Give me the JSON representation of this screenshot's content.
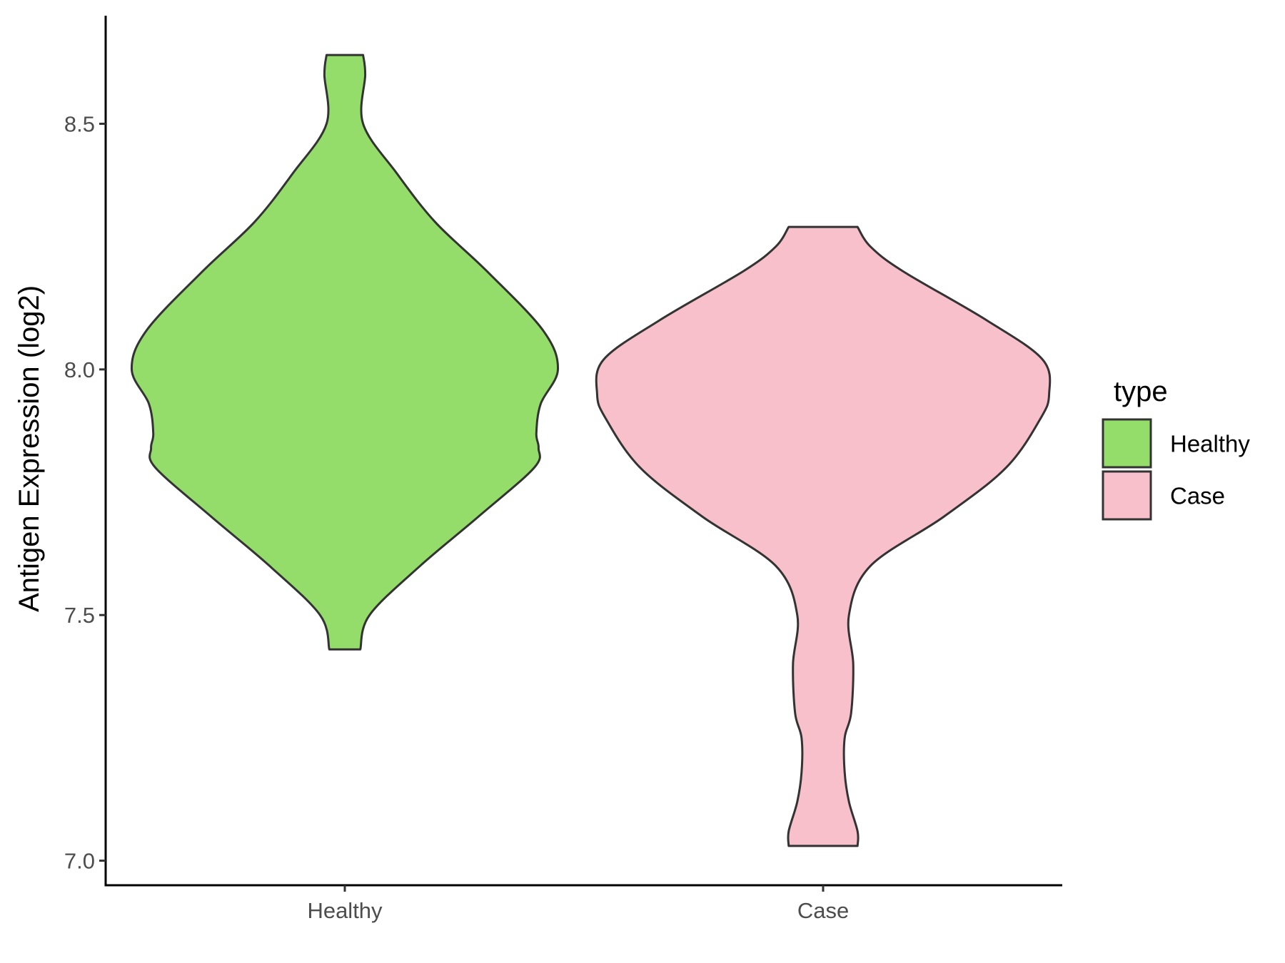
{
  "chart_data": {
    "type": "violin",
    "title": "",
    "xlabel": "",
    "ylabel": "Antigen Expression (log2)",
    "ylim": [
      6.95,
      8.72
    ],
    "yticks": [
      "7.0",
      "7.5",
      "8.0",
      "8.5"
    ],
    "yticks_values": [
      7.0,
      7.5,
      8.0,
      8.5
    ],
    "categories": [
      "Healthy",
      "Case"
    ],
    "legend": {
      "title": "type",
      "position": "right",
      "entries": [
        "Healthy",
        "Case"
      ]
    },
    "series": [
      {
        "name": "Healthy",
        "color": "#95dd6a",
        "min": 7.43,
        "max": 8.64,
        "density": [
          [
            7.43,
            0.072
          ],
          [
            7.5,
            0.115
          ],
          [
            7.6,
            0.35
          ],
          [
            7.7,
            0.62
          ],
          [
            7.8,
            0.88
          ],
          [
            7.84,
            0.9
          ],
          [
            7.87,
            0.89
          ],
          [
            7.93,
            0.91
          ],
          [
            8.0,
            0.99
          ],
          [
            8.08,
            0.92
          ],
          [
            8.2,
            0.66
          ],
          [
            8.3,
            0.42
          ],
          [
            8.4,
            0.24
          ],
          [
            8.5,
            0.085
          ],
          [
            8.6,
            0.095
          ],
          [
            8.64,
            0.085
          ]
        ]
      },
      {
        "name": "Case",
        "color": "#f8c0cb",
        "min": 7.03,
        "max": 8.29,
        "density": [
          [
            7.03,
            0.16
          ],
          [
            7.06,
            0.16
          ],
          [
            7.12,
            0.12
          ],
          [
            7.18,
            0.1
          ],
          [
            7.25,
            0.1
          ],
          [
            7.3,
            0.13
          ],
          [
            7.4,
            0.14
          ],
          [
            7.5,
            0.12
          ],
          [
            7.6,
            0.22
          ],
          [
            7.7,
            0.56
          ],
          [
            7.8,
            0.85
          ],
          [
            7.9,
            1.01
          ],
          [
            7.95,
            1.05
          ],
          [
            8.02,
            1.02
          ],
          [
            8.1,
            0.76
          ],
          [
            8.2,
            0.37
          ],
          [
            8.25,
            0.22
          ],
          [
            8.29,
            0.16
          ]
        ]
      }
    ]
  }
}
